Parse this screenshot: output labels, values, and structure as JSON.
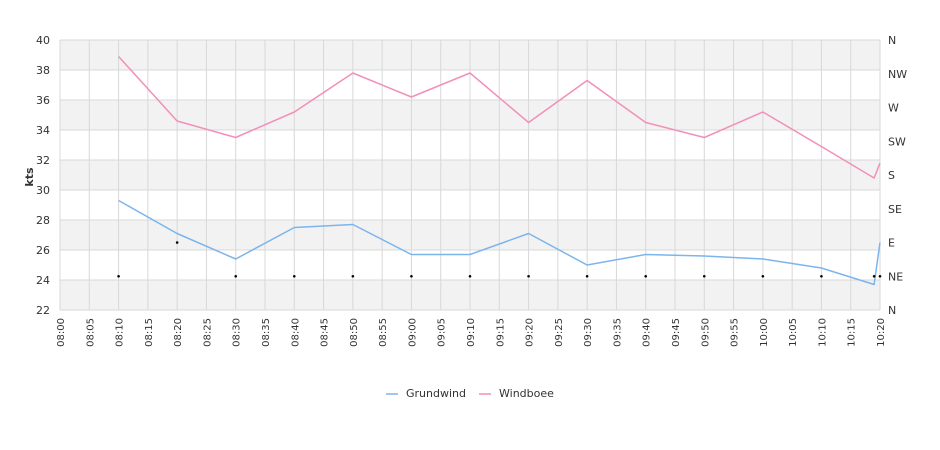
{
  "chart_data": {
    "type": "line",
    "ylabel": "kts",
    "ylim": [
      22,
      40
    ],
    "yticks": [
      22,
      24,
      26,
      28,
      30,
      32,
      34,
      36,
      38,
      40
    ],
    "x_domain": [
      "08:00",
      "10:20"
    ],
    "xticks": [
      "08:00",
      "08:05",
      "08:10",
      "08:15",
      "08:20",
      "08:25",
      "08:30",
      "08:35",
      "08:40",
      "08:45",
      "08:50",
      "08:55",
      "09:00",
      "09:05",
      "09:10",
      "09:15",
      "09:20",
      "09:25",
      "09:30",
      "09:35",
      "09:40",
      "09:45",
      "09:50",
      "09:55",
      "10:00",
      "10:05",
      "10:10",
      "10:15",
      "10:20"
    ],
    "right_axis_labels": [
      "N",
      "NE",
      "E",
      "SE",
      "S",
      "SW",
      "W",
      "NW",
      "N"
    ],
    "grid": true,
    "legend_position": "bottom",
    "series": [
      {
        "name": "Grundwind",
        "color": "#7cb5ec",
        "x": [
          "08:10",
          "08:20",
          "08:30",
          "08:40",
          "08:50",
          "09:00",
          "09:10",
          "09:20",
          "09:30",
          "09:40",
          "09:50",
          "10:00",
          "10:10",
          "10:19",
          "10:20"
        ],
        "values": [
          29.3,
          27.1,
          25.4,
          27.5,
          27.7,
          25.7,
          25.7,
          27.1,
          25.0,
          25.7,
          25.6,
          25.4,
          24.8,
          23.7,
          26.5
        ]
      },
      {
        "name": "Windboee",
        "color": "#f28fba",
        "x": [
          "08:10",
          "08:20",
          "08:30",
          "08:40",
          "08:50",
          "09:00",
          "09:10",
          "09:20",
          "09:30",
          "09:40",
          "09:50",
          "10:00",
          "10:10",
          "10:19",
          "10:20"
        ],
        "values": [
          38.9,
          34.6,
          33.5,
          35.2,
          37.8,
          36.2,
          37.8,
          34.5,
          37.3,
          34.5,
          33.5,
          35.2,
          32.9,
          30.8,
          31.8
        ]
      }
    ],
    "direction_markers": {
      "x": [
        "08:10",
        "08:20",
        "08:30",
        "08:40",
        "08:50",
        "09:00",
        "09:10",
        "09:20",
        "09:30",
        "09:40",
        "09:50",
        "10:00",
        "10:10",
        "10:19",
        "10:20"
      ],
      "values": [
        "NE",
        "E",
        "NE",
        "NE",
        "NE",
        "NE",
        "NE",
        "NE",
        "NE",
        "NE",
        "NE",
        "NE",
        "NE",
        "NE",
        "NE"
      ]
    }
  }
}
